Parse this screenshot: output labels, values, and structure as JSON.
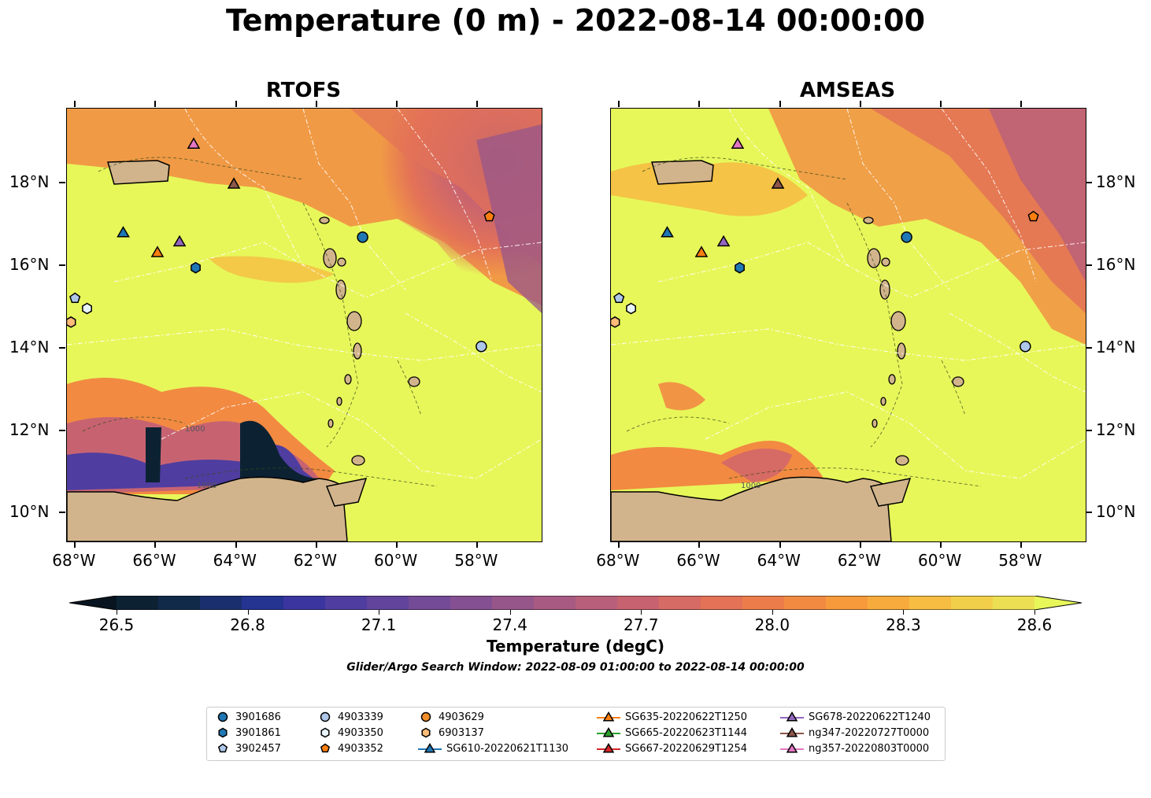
{
  "title": "Temperature (0 m) - 2022-08-14 00:00:00",
  "panels": [
    {
      "title": "RTOFS"
    },
    {
      "title": "AMSEAS"
    }
  ],
  "axes": {
    "lon_labels": [
      "68°W",
      "66°W",
      "64°W",
      "62°W",
      "60°W",
      "58°W"
    ],
    "lat_labels": [
      "18°N",
      "16°N",
      "14°N",
      "12°N",
      "10°N"
    ]
  },
  "contour_labels": [
    "1000",
    "1000",
    "1000"
  ],
  "colorbar": {
    "ticks": [
      "26.5",
      "26.8",
      "27.1",
      "27.4",
      "27.7",
      "28.0",
      "28.3",
      "28.6"
    ],
    "label": "Temperature (degC)",
    "colors": [
      "#0c2233",
      "#112a4a",
      "#1a2f6e",
      "#253391",
      "#3b35a0",
      "#4f3da0",
      "#62449c",
      "#744b97",
      "#855091",
      "#97568a",
      "#a85a83",
      "#b85f7b",
      "#c76371",
      "#d66a64",
      "#e37257",
      "#ec7d4b",
      "#f28a42",
      "#f69a3c",
      "#f7ab3c",
      "#f6bd42",
      "#f2cf4b",
      "#ecdf54"
    ]
  },
  "search_window": "Glider/Argo Search Window: 2022-08-09 01:00:00 to 2022-08-14 00:00:00",
  "colors": {
    "land": "#d2b48c",
    "ocean_warm": "#e7f75a",
    "ocean_mid": "#f28a42",
    "ocean_cool": "#97568a",
    "ocean_cold": "#0c2233"
  },
  "legend": [
    {
      "label": "3901686",
      "marker": "circle",
      "color": "#1f77b4"
    },
    {
      "label": "3901861",
      "marker": "hexagon",
      "color": "#1f77b4"
    },
    {
      "label": "3902457",
      "marker": "pentagon",
      "color": "#aec7e8"
    },
    {
      "label": "4903339",
      "marker": "circle",
      "color": "#aec7e8"
    },
    {
      "label": "4903350",
      "marker": "hexagon",
      "color": "#e8f4fb"
    },
    {
      "label": "4903352",
      "marker": "pentagon",
      "color": "#ff7f0e"
    },
    {
      "label": "4903629",
      "marker": "circle",
      "color": "#f28e2b"
    },
    {
      "label": "6903137",
      "marker": "hexagon",
      "color": "#ffbb78"
    },
    {
      "label": "SG610-20220621T1130",
      "marker": "triangle-line",
      "color": "#1f77b4"
    },
    {
      "label": "SG635-20220622T1250",
      "marker": "triangle-line",
      "color": "#ff7f0e"
    },
    {
      "label": "SG665-20220623T1144",
      "marker": "triangle-line",
      "color": "#2ca02c"
    },
    {
      "label": "SG667-20220629T1254",
      "marker": "triangle-line",
      "color": "#d62728"
    },
    {
      "label": "SG678-20220622T1240",
      "marker": "triangle-line",
      "color": "#9467bd"
    },
    {
      "label": "ng347-20220727T0000",
      "marker": "triangle-line",
      "color": "#8c564b"
    },
    {
      "label": "ng357-20220803T0000",
      "marker": "triangle-line",
      "color": "#e377c2"
    }
  ],
  "markers": [
    {
      "name": "3901686",
      "marker": "circle",
      "color": "#1f77b4",
      "lon": -60.85,
      "lat": 16.68
    },
    {
      "name": "3901861",
      "marker": "hexagon",
      "color": "#1f77b4",
      "lon": -65.0,
      "lat": 15.94
    },
    {
      "name": "3902457",
      "marker": "pentagon",
      "color": "#aec7e8",
      "lon": -68.0,
      "lat": 15.2
    },
    {
      "name": "4903339",
      "marker": "circle",
      "color": "#aec7e8",
      "lon": -57.9,
      "lat": 14.03
    },
    {
      "name": "4903350",
      "marker": "hexagon",
      "color": "#e8f4fb",
      "lon": -67.7,
      "lat": 14.95
    },
    {
      "name": "4903352",
      "marker": "pentagon",
      "color": "#ff7f0e",
      "lon": -57.7,
      "lat": 17.18
    },
    {
      "name": "6903137",
      "marker": "hexagon",
      "color": "#ffbb78",
      "lon": -68.1,
      "lat": 14.62
    },
    {
      "name": "SG610-20220621T1130",
      "marker": "triangle",
      "color": "#1f77b4",
      "lon": -66.8,
      "lat": 16.8
    },
    {
      "name": "SG635-20220622T1250",
      "marker": "triangle",
      "color": "#ff7f0e",
      "lon": -65.95,
      "lat": 16.32
    },
    {
      "name": "SG678-20220622T1240",
      "marker": "triangle",
      "color": "#9467bd",
      "lon": -65.4,
      "lat": 16.58
    },
    {
      "name": "ng347-20220727T0000",
      "marker": "triangle",
      "color": "#8c564b",
      "lon": -64.05,
      "lat": 17.98
    },
    {
      "name": "ng357-20220803T0000",
      "marker": "triangle",
      "color": "#e377c2",
      "lon": -65.05,
      "lat": 18.95
    }
  ]
}
